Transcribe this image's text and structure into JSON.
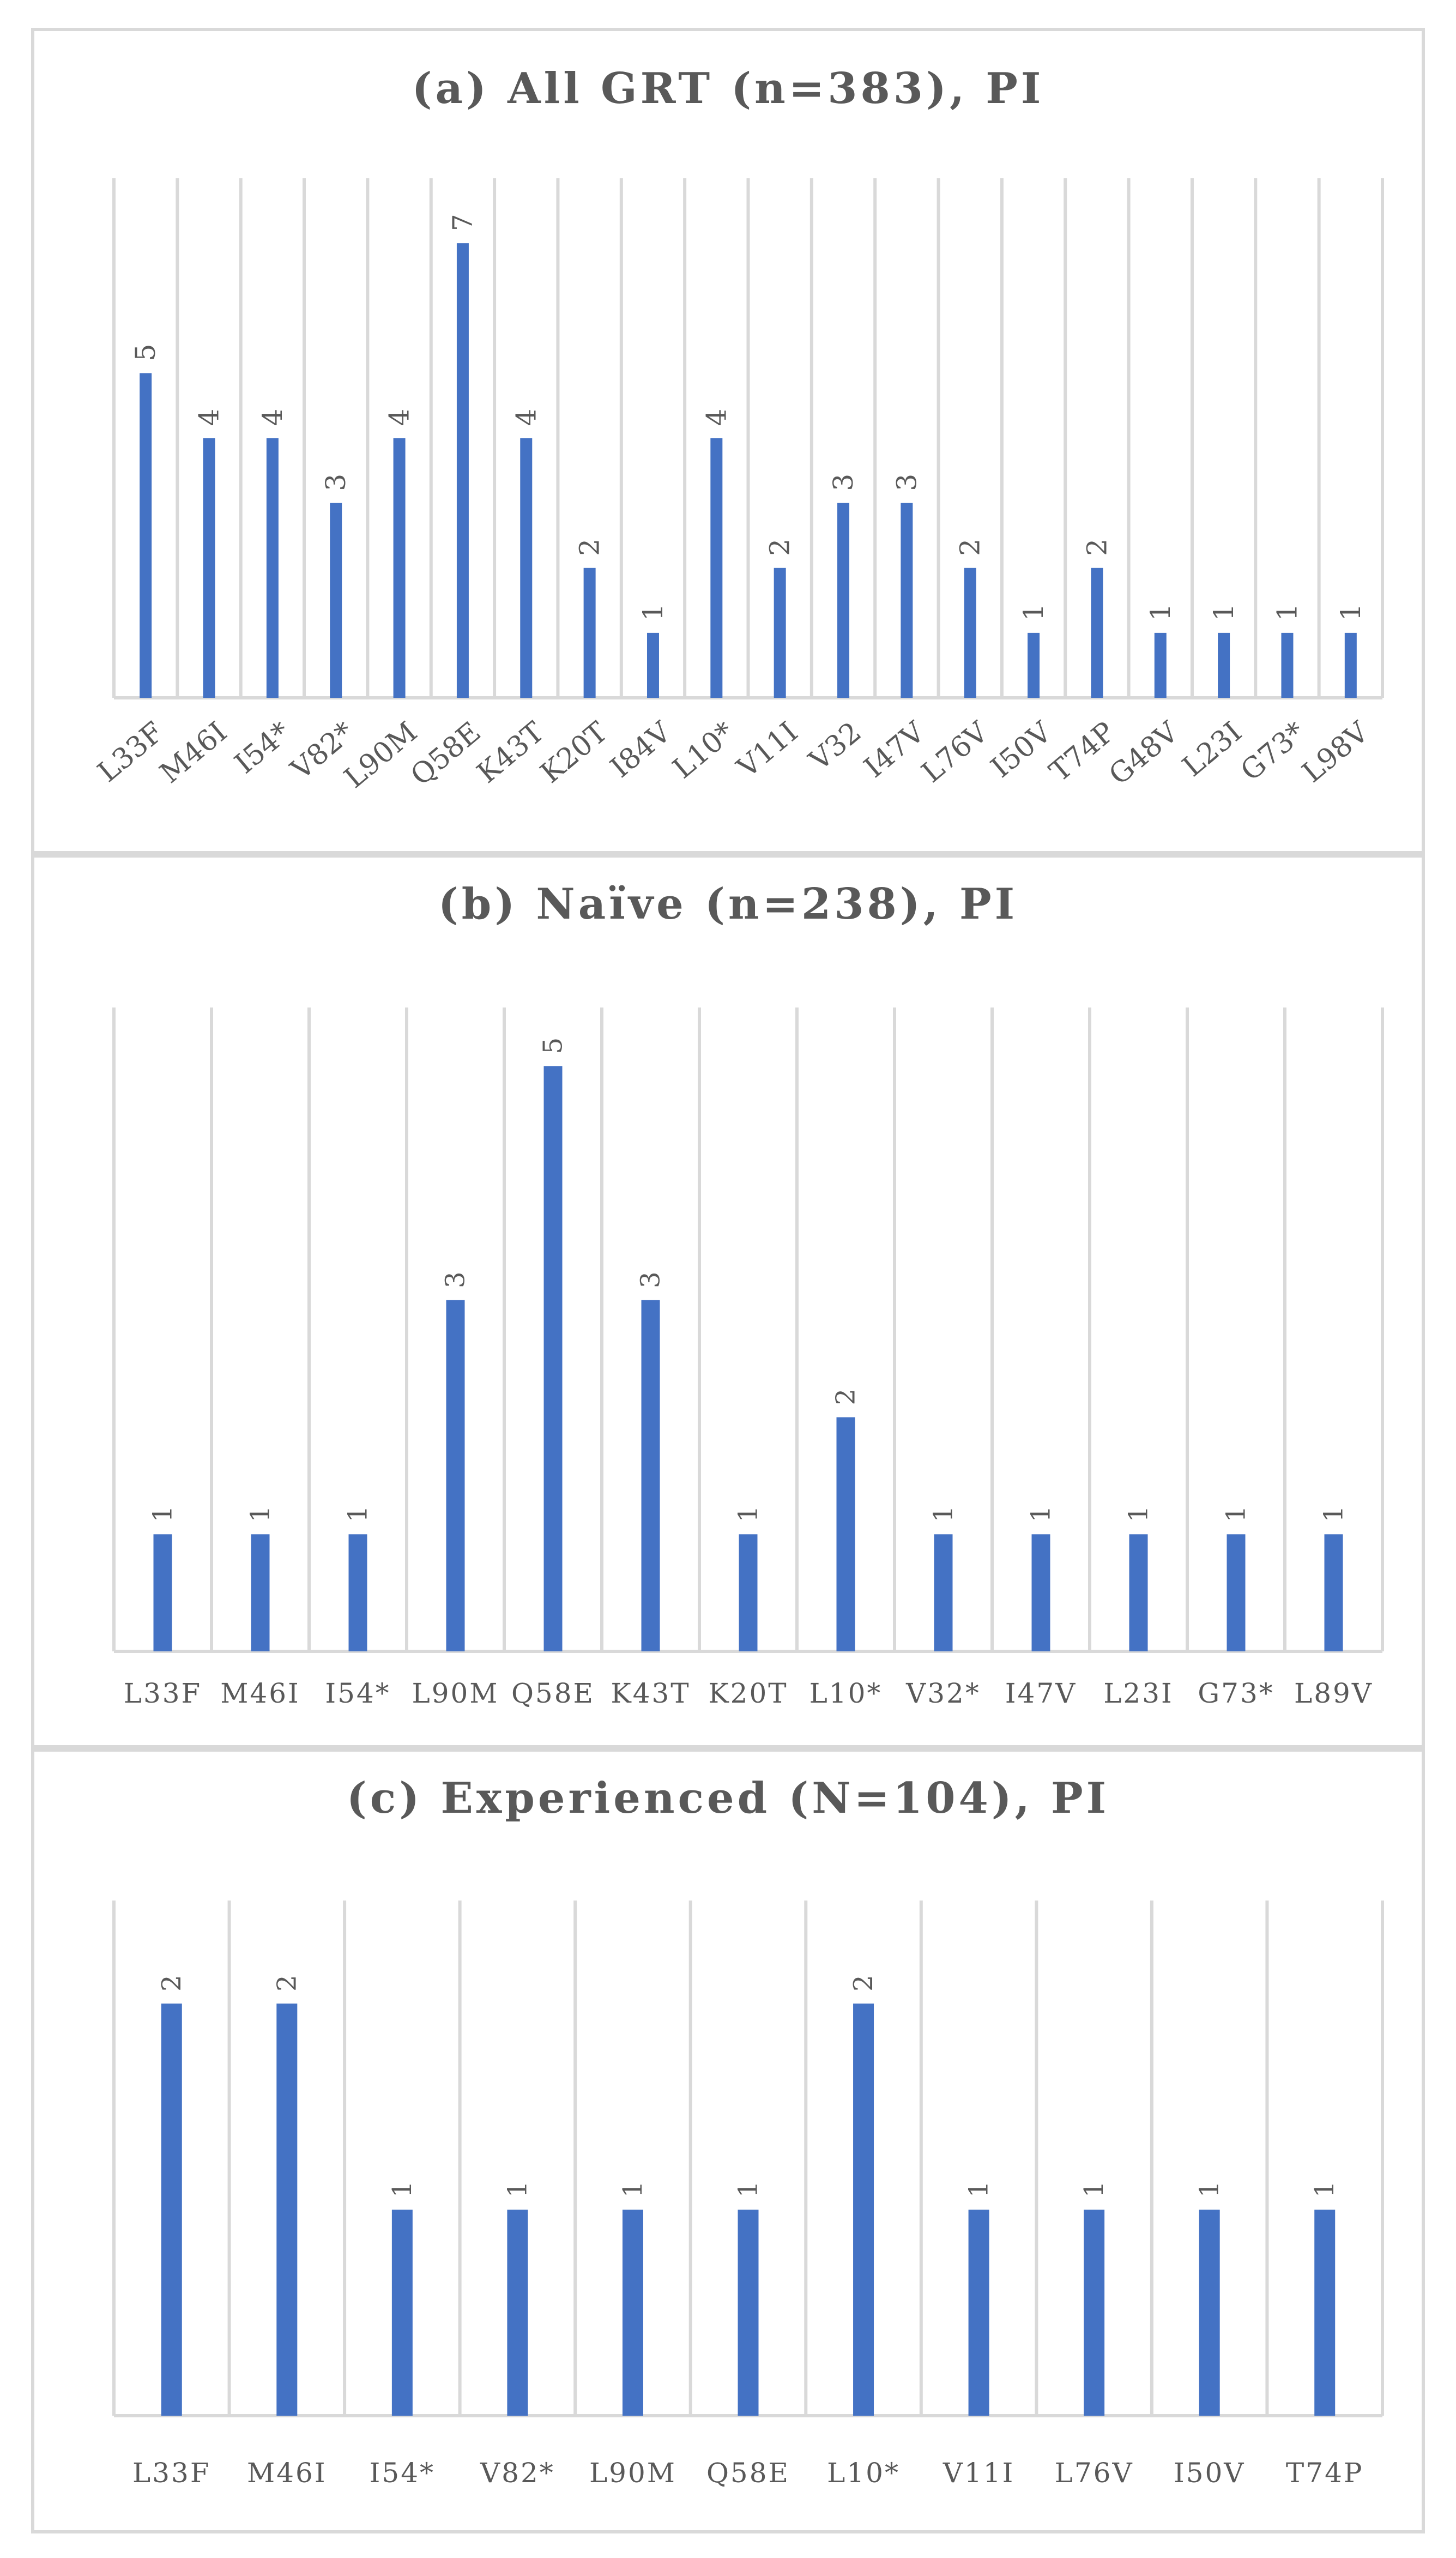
{
  "chart_data": [
    {
      "type": "bar",
      "title": "(a) All GRT (n=383), PI",
      "categories": [
        "L33F",
        "M46I",
        "I54*",
        "V82*",
        "L90M",
        "Q58E",
        "K43T",
        "K20T",
        "I84V",
        "L10*",
        "V11I",
        "V32",
        "I47V",
        "L76V",
        "I50V",
        "T74P",
        "G48V",
        "L23I",
        "G73*",
        "L98V"
      ],
      "values": [
        5,
        4,
        4,
        3,
        4,
        7,
        4,
        2,
        1,
        4,
        2,
        3,
        3,
        2,
        1,
        2,
        1,
        1,
        1,
        1
      ],
      "xlabel": "",
      "ylabel": "",
      "ylim": [
        0,
        8
      ],
      "grid": true,
      "legend": "none",
      "label_rotation": "vertical",
      "tick_rotation": "diagonal"
    },
    {
      "type": "bar",
      "title": "(b) Naïve (n=238), PI",
      "categories": [
        "L33F",
        "M46I",
        "I54*",
        "L90M",
        "Q58E",
        "K43T",
        "K20T",
        "L10*",
        "V32*",
        "I47V",
        "L23I",
        "G73*",
        "L89V"
      ],
      "values": [
        1,
        1,
        1,
        3,
        5,
        3,
        1,
        2,
        1,
        1,
        1,
        1,
        1
      ],
      "xlabel": "",
      "ylabel": "",
      "ylim": [
        0,
        5.5
      ],
      "grid": true,
      "legend": "none",
      "label_rotation": "vertical",
      "tick_rotation": "horizontal"
    },
    {
      "type": "bar",
      "title": "(c) Experienced (N=104), PI",
      "categories": [
        "L33F",
        "M46I",
        "I54*",
        "V82*",
        "L90M",
        "Q58E",
        "L10*",
        "V11I",
        "L76V",
        "I50V",
        "T74P"
      ],
      "values": [
        2,
        2,
        1,
        1,
        1,
        1,
        2,
        1,
        1,
        1,
        1
      ],
      "xlabel": "",
      "ylabel": "",
      "ylim": [
        0,
        2.5
      ],
      "grid": true,
      "legend": "none",
      "label_rotation": "vertical",
      "tick_rotation": "horizontal"
    }
  ],
  "colors": {
    "bar": "#4472c4",
    "grid": "#d9d9d9",
    "text": "#595959"
  }
}
